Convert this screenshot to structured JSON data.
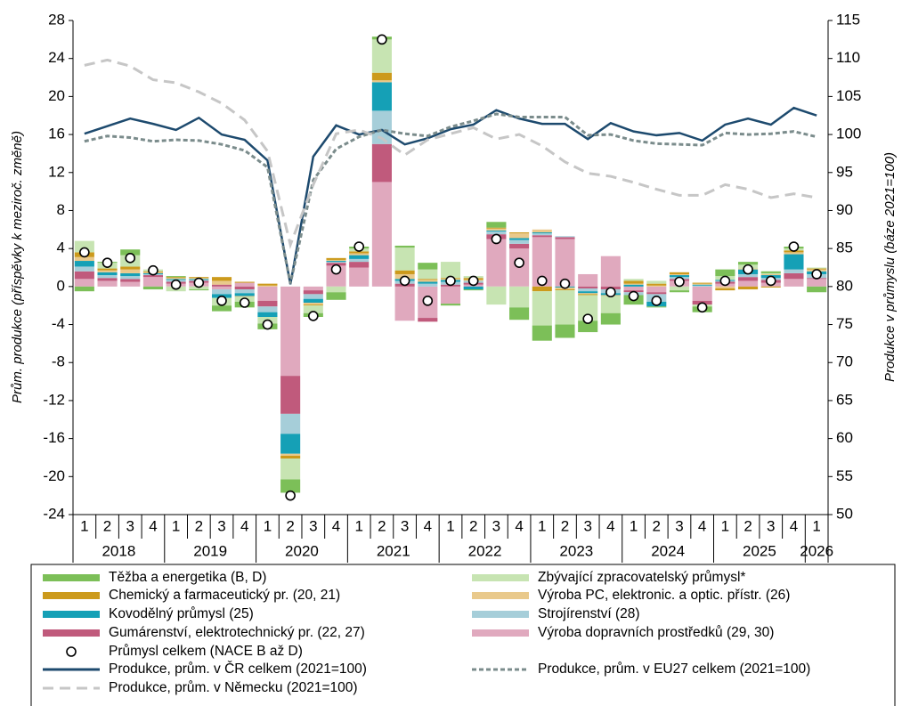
{
  "chart_data": {
    "type": "stacked_bar_line",
    "ylabel": "Prům. produkce (příspěvky  k meziroč. změně)",
    "y2label": "Produkce v průmyslu (báze 2021=100)",
    "categories": [
      "1",
      "2",
      "3",
      "4",
      "1",
      "2",
      "3",
      "4",
      "1",
      "2",
      "3",
      "4",
      "1",
      "2",
      "3",
      "4",
      "1",
      "2",
      "3",
      "4",
      "1",
      "2",
      "3",
      "4",
      "1",
      "2",
      "3",
      "4",
      "1",
      "2",
      "3",
      "4",
      "1"
    ],
    "years": [
      "2018",
      "2019",
      "2020",
      "2021",
      "2022",
      "2023",
      "2024",
      "2025",
      "2026"
    ],
    "ylim": [
      -24,
      28
    ],
    "yticks": [
      -24,
      -20,
      -16,
      -12,
      -8,
      -4,
      0,
      4,
      8,
      12,
      16,
      20,
      24,
      28
    ],
    "y2lim": [
      50,
      115
    ],
    "y2ticks": [
      50,
      55,
      60,
      65,
      70,
      75,
      80,
      85,
      90,
      95,
      100,
      105,
      110,
      115
    ],
    "series": [
      {
        "name": "Těžba a energetika (B, D)",
        "color": "#7cbf58",
        "values": [
          -0.5,
          0.1,
          0.6,
          -0.3,
          0.1,
          -0.1,
          -0.6,
          -0.6,
          -0.6,
          -1.4,
          -0.4,
          -0.8,
          0.2,
          0.3,
          0.2,
          0.7,
          -0.2,
          -0.1,
          0.6,
          -1.3,
          -1.6,
          -1.4,
          -1.2,
          -1.2,
          -1,
          -0.1,
          -0.2,
          -0.6,
          0.7,
          0.3,
          0.2,
          0.2,
          -0.6
        ]
      },
      {
        "name": "Zbývající zpracovatelský průmysl*",
        "color": "#c7e4b2",
        "values": [
          1.2,
          0.6,
          1.2,
          0.2,
          -0.5,
          -0.3,
          -0.8,
          -0.5,
          -0.7,
          -2.2,
          -0.8,
          -0.6,
          0.3,
          3.5,
          2.4,
          1,
          1.7,
          0.2,
          -1.9,
          -2.2,
          -3.6,
          -3.6,
          -2.7,
          -1.8,
          0.2,
          0.3,
          -0.4,
          -0.2,
          0.4,
          0.4,
          0.1,
          0.2,
          0.1
        ]
      },
      {
        "name": "Chemický a farmaceutický pr. (20, 21)",
        "color": "#cc9a1c",
        "values": [
          0.5,
          0.2,
          0.3,
          0.1,
          0.1,
          0.1,
          0.4,
          0.1,
          0.2,
          -0.3,
          -0.1,
          0.2,
          0.2,
          0.8,
          0.4,
          0.1,
          0.1,
          0.2,
          0.1,
          0.1,
          -0.5,
          -0.1,
          -0.1,
          0,
          0.3,
          0.2,
          0.2,
          0.1,
          -0.2,
          -0.3,
          -0.1,
          0.2,
          0.1
        ]
      },
      {
        "name": "Výroba PC, elektronic. a optic. přístr. (26)",
        "color": "#e9c98b",
        "values": [
          0.4,
          0.2,
          0.4,
          0.1,
          0.1,
          0.1,
          0.4,
          -0.1,
          0.1,
          -0.2,
          -0.2,
          0.1,
          0.2,
          0.2,
          0.5,
          0.2,
          0.1,
          0.1,
          0.2,
          0.5,
          0.3,
          -0.2,
          -0.1,
          -0.1,
          0.1,
          0.1,
          0.1,
          0.1,
          -0.2,
          0.1,
          0.1,
          0.2,
          0.2
        ]
      },
      {
        "name": "Kovodělný průmysl (25)",
        "color": "#15a0b6",
        "values": [
          0.6,
          0.3,
          0.3,
          0.1,
          0.1,
          0.1,
          -0.4,
          -0.3,
          -0.5,
          -2.1,
          -0.4,
          0.1,
          0.4,
          3,
          0.2,
          0.2,
          0.2,
          -0.3,
          0.1,
          0.2,
          0.1,
          -0.1,
          -0.2,
          -0.2,
          0.2,
          -0.5,
          0.2,
          0.1,
          0.1,
          0.5,
          0.3,
          1.6,
          0.3
        ]
      },
      {
        "name": "Strojírenství (28)",
        "color": "#a6ced9",
        "values": [
          0.5,
          0.3,
          0.3,
          0.1,
          0.2,
          0.1,
          -0.5,
          -0.4,
          -0.6,
          -2.1,
          -0.5,
          0.1,
          0.3,
          3.5,
          0.3,
          0.3,
          0.3,
          0.2,
          0.3,
          0.4,
          0.2,
          0.1,
          -0.3,
          -0.4,
          -0.3,
          -0.8,
          0.2,
          0.1,
          0.1,
          0.3,
          0.2,
          0.4,
          0.4
        ]
      },
      {
        "name": "Gumárenství, elektrotechnický pr. (22, 27)",
        "color": "#c05a7c",
        "values": [
          0.8,
          0.3,
          0.3,
          0.2,
          0.2,
          0.2,
          0.2,
          -0.3,
          -0.6,
          -4,
          -0.4,
          0.3,
          0.6,
          4,
          0.3,
          -0.4,
          0.2,
          0.2,
          0.5,
          0.5,
          0.2,
          0.2,
          -0.2,
          -0.3,
          -0.2,
          -0.2,
          0.2,
          -0.4,
          0.2,
          0.4,
          0.3,
          0.6,
          0.1
        ]
      },
      {
        "name": "Výroba dopravních prostředků (29, 30)",
        "color": "#e0a9be",
        "values": [
          0.8,
          0.6,
          0.5,
          1,
          0.3,
          0.4,
          -0.3,
          0.4,
          -1.5,
          -9.4,
          -0.4,
          2.2,
          2,
          11,
          -3.6,
          -3.3,
          -1.8,
          0.2,
          5,
          4,
          5.2,
          5,
          1.3,
          3.2,
          -0.4,
          -0.6,
          0.6,
          -1.5,
          0.3,
          0.6,
          0.4,
          0.8,
          0.8
        ]
      }
    ],
    "points": {
      "name": "Průmysl celkem (NACE B až D)",
      "values": [
        3.6,
        2.5,
        3,
        1.7,
        0.2,
        0.4,
        -1.5,
        -1.7,
        -4,
        -22,
        -3.1,
        1.8,
        4.2,
        26,
        0.6,
        -1.5,
        0.6,
        0.6,
        5,
        2.5,
        0.6,
        0.3,
        -3.4,
        -0.6,
        -1,
        -1.5,
        0.5,
        -2.2,
        0.6,
        1.8,
        0.6,
        4.2,
        1.3
      ]
    },
    "lines": [
      {
        "name": "Produkce, prům. v ČR celkem (2021=100)",
        "color": "#1d4a6e",
        "axis": "y2",
        "values": [
          100.1,
          101.1,
          102.1,
          101.4,
          100.6,
          102.2,
          100.0,
          99.3,
          96.6,
          80.3,
          97.1,
          101.2,
          100.0,
          100.6,
          98.7,
          99.5,
          100.7,
          101.3,
          103.2,
          102.1,
          101.4,
          101.4,
          99.4,
          101.5,
          100.4,
          99.9,
          100.2,
          99.2,
          101.3,
          102.1,
          101.3,
          103.5,
          102.5
        ]
      },
      {
        "name": "Produkce, prům. v EU27 celkem (2021=100)",
        "color": "#7b8c8c",
        "axis": "y2",
        "values": [
          99.1,
          99.8,
          99.6,
          99.1,
          99.3,
          99.2,
          98.7,
          97.9,
          95.7,
          80.4,
          94.0,
          98.1,
          99.7,
          100.6,
          100.1,
          99.8,
          101.0,
          101.8,
          102.7,
          102.3,
          102.3,
          102.3,
          99.9,
          100.0,
          99.2,
          98.8,
          98.7,
          98.6,
          100.2,
          100.0,
          100.1,
          100.4,
          99.7
        ]
      },
      {
        "name": "Produkce, prům. v Německu (2021=100)",
        "color": "#c6c6c6",
        "axis": "y2",
        "values": [
          109.1,
          109.8,
          109.0,
          107.2,
          106.8,
          105.6,
          104.1,
          101.9,
          97.8,
          85.5,
          93.4,
          100.1,
          100.6,
          99.5,
          97.3,
          99.3,
          100.1,
          100.9,
          99.4,
          100.0,
          98.5,
          96.4,
          94.9,
          94.5,
          93.7,
          92.8,
          92.0,
          92.0,
          93.4,
          92.8,
          91.7,
          92.2,
          91.7
        ]
      }
    ]
  }
}
